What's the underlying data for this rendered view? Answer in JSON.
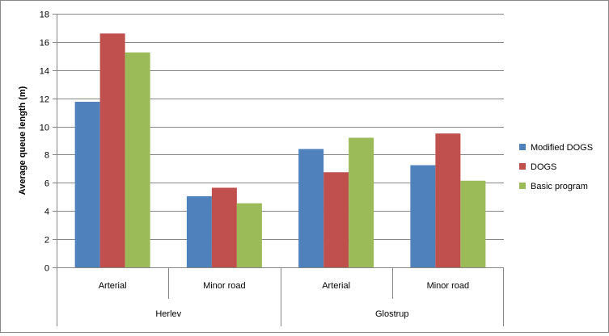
{
  "chart_data": {
    "type": "bar",
    "title": "",
    "ylabel": "Average queue length (m)",
    "xlabel": "",
    "ylim": [
      0,
      18
    ],
    "yticks": [
      0,
      2,
      4,
      6,
      8,
      10,
      12,
      14,
      16,
      18
    ],
    "grid": true,
    "legend_position": "right",
    "categories": [
      "Arterial",
      "Minor road",
      "Arterial",
      "Minor road"
    ],
    "groups": [
      {
        "label": "Herlev",
        "span": [
          0,
          1
        ]
      },
      {
        "label": "Glostrup",
        "span": [
          2,
          3
        ]
      }
    ],
    "series": [
      {
        "name": "Modified DOGS",
        "color": "#4F81BD",
        "values": [
          11.75,
          5.05,
          8.4,
          7.25
        ]
      },
      {
        "name": "DOGS",
        "color": "#C0504D",
        "values": [
          16.6,
          5.65,
          6.75,
          9.5
        ]
      },
      {
        "name": "Basic program",
        "color": "#9BBB59",
        "values": [
          15.25,
          4.55,
          9.2,
          6.15
        ]
      }
    ]
  }
}
